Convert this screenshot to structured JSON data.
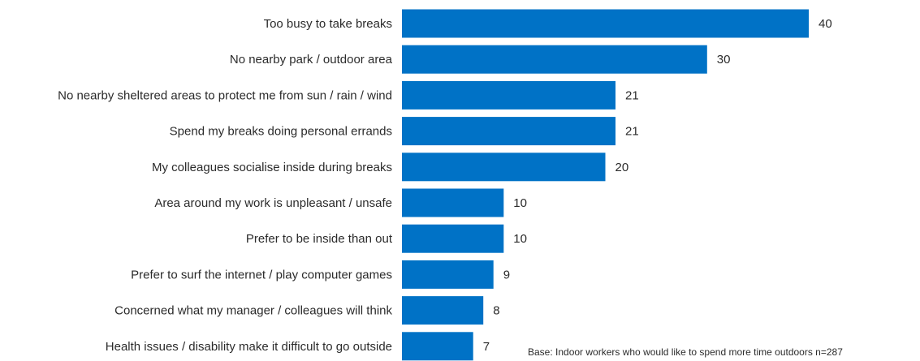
{
  "chart_data": {
    "type": "bar",
    "orientation": "horizontal",
    "categories": [
      "Too busy to take breaks",
      "No nearby park / outdoor area",
      "No nearby sheltered areas to protect me from sun / rain / wind",
      "Spend my breaks doing personal errands",
      "My colleagues socialise inside during breaks",
      "Area around my work is unpleasant / unsafe",
      "Prefer to be inside than out",
      "Prefer to surf the internet / play computer games",
      "Concerned what my manager / colleagues will think",
      "Health issues / disability make it difficult to go outside"
    ],
    "values": [
      40,
      30,
      21,
      21,
      20,
      10,
      10,
      9,
      8,
      7
    ],
    "title": "",
    "xlabel": "",
    "ylabel": "",
    "xlim": [
      0,
      40
    ],
    "grid": false,
    "data_labels": true,
    "bar_color": "#0072c6"
  },
  "footnote": "Base: Indoor workers who would like to spend more time outdoors n=287"
}
